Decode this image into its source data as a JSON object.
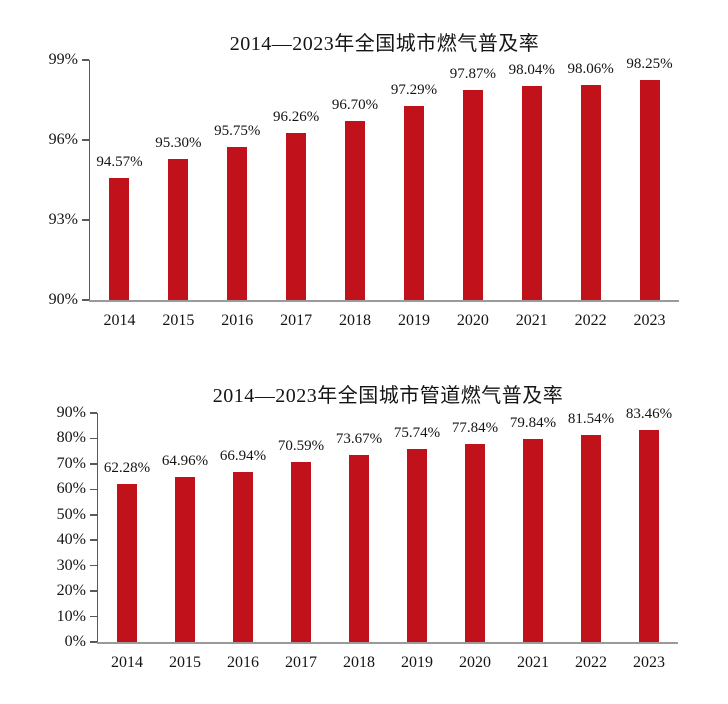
{
  "page": {
    "background": "#ffffff",
    "text_color": "#141414"
  },
  "style": {
    "axis_color": "#595959",
    "baseline_color": "#9a9a9a"
  },
  "chart_data": [
    {
      "type": "bar",
      "title": "2014—2023年全国城市燃气普及率",
      "categories": [
        "2014",
        "2015",
        "2016",
        "2017",
        "2018",
        "2019",
        "2020",
        "2021",
        "2022",
        "2023"
      ],
      "values": [
        94.57,
        95.3,
        95.75,
        96.26,
        96.7,
        97.29,
        97.87,
        98.04,
        98.06,
        98.25
      ],
      "data_labels": [
        "94.57%",
        "95.30%",
        "95.75%",
        "96.26%",
        "96.70%",
        "97.29%",
        "97.87%",
        "98.04%",
        "98.06%",
        "98.25%"
      ],
      "xlabel": "",
      "ylabel": "",
      "ylim": [
        90,
        99
      ],
      "yticks": [
        90,
        93,
        96,
        99
      ],
      "ytick_labels": [
        "90%",
        "93%",
        "96%",
        "99%"
      ],
      "bar_color": "#c1121c",
      "grid": false,
      "legend": "none"
    },
    {
      "type": "bar",
      "title": "2014—2023年全国城市管道燃气普及率",
      "categories": [
        "2014",
        "2015",
        "2016",
        "2017",
        "2018",
        "2019",
        "2020",
        "2021",
        "2022",
        "2023"
      ],
      "values": [
        62.28,
        64.96,
        66.94,
        70.59,
        73.67,
        75.74,
        77.84,
        79.84,
        81.54,
        83.46
      ],
      "data_labels": [
        "62.28%",
        "64.96%",
        "66.94%",
        "70.59%",
        "73.67%",
        "75.74%",
        "77.84%",
        "79.84%",
        "81.54%",
        "83.46%"
      ],
      "xlabel": "",
      "ylabel": "",
      "ylim": [
        0,
        90
      ],
      "yticks": [
        0,
        10,
        20,
        30,
        40,
        50,
        60,
        70,
        80,
        90
      ],
      "ytick_labels": [
        "0%",
        "10%",
        "20%",
        "30%",
        "40%",
        "50%",
        "60%",
        "70%",
        "80%",
        "90%"
      ],
      "bar_color": "#c1121c",
      "grid": false,
      "legend": "none"
    }
  ]
}
